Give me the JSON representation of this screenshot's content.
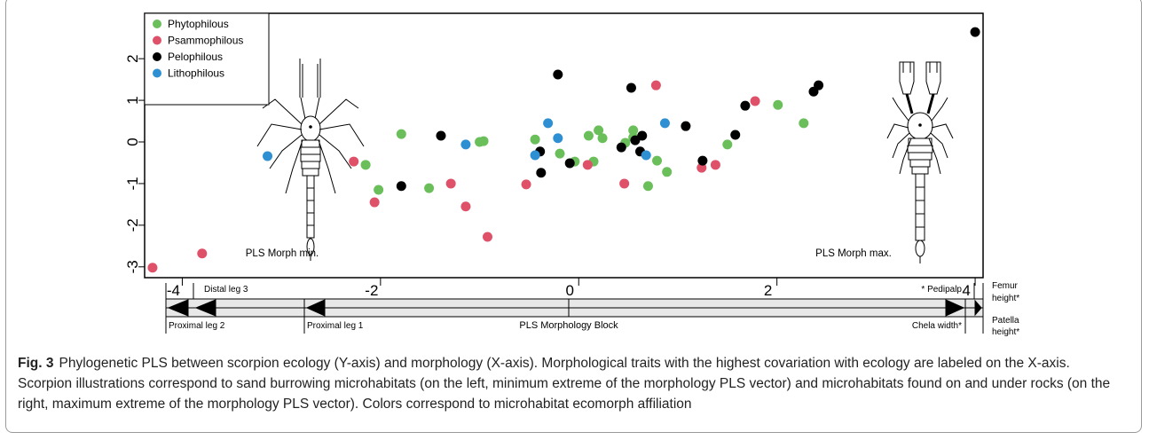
{
  "chart_data": {
    "type": "scatter",
    "xlim": [
      -4.38,
      4.08
    ],
    "ylim": [
      -3.26,
      3.09
    ],
    "xticks": [
      -4,
      -2,
      0,
      2,
      4
    ],
    "yticks": [
      -3,
      -2,
      -1,
      0,
      1,
      2
    ],
    "legend": "upper left",
    "series": [
      {
        "name": "Phytophilous",
        "color": "#6abf5b",
        "x": [
          -2.15,
          -2.02,
          -1.79,
          -1.51,
          -1.0,
          -0.96,
          -0.44,
          -0.19,
          -0.04,
          0.1,
          0.15,
          0.2,
          0.24,
          0.47,
          0.55,
          0.55,
          0.7,
          0.79,
          0.89,
          1.5,
          2.01,
          2.27
        ],
        "values": [
          -0.55,
          -1.15,
          0.19,
          -1.11,
          0.0,
          0.02,
          0.06,
          -0.28,
          -0.47,
          0.15,
          -0.47,
          0.28,
          0.09,
          -0.02,
          0.28,
          0.11,
          -1.06,
          -0.45,
          -0.72,
          -0.06,
          0.89,
          0.45
        ]
      },
      {
        "name": "Psammophilous",
        "color": "#df5168",
        "x": [
          -4.3,
          -3.8,
          -2.27,
          -2.06,
          -1.29,
          -1.14,
          -0.92,
          -0.53,
          0.09,
          0.46,
          0.78,
          1.24,
          1.38,
          1.78
        ],
        "values": [
          -3.02,
          -2.68,
          -0.47,
          -1.45,
          -1.0,
          -1.55,
          -2.28,
          -1.02,
          -0.55,
          -1.0,
          1.36,
          -0.62,
          -0.55,
          0.98
        ]
      },
      {
        "name": "Pelophilous",
        "color": "#000000",
        "x": [
          -1.79,
          -1.39,
          -0.38,
          -0.39,
          -0.21,
          -0.09,
          0.43,
          0.53,
          0.57,
          0.62,
          0.64,
          1.08,
          1.25,
          1.58,
          1.68,
          2.37,
          2.42,
          4.0
        ],
        "values": [
          -1.06,
          0.15,
          -0.74,
          -0.23,
          1.62,
          -0.51,
          -0.13,
          1.3,
          0.04,
          -0.23,
          0.15,
          0.38,
          -0.45,
          0.17,
          0.87,
          1.21,
          1.36,
          2.64
        ]
      },
      {
        "name": "Lithophilous",
        "color": "#2f8fd3",
        "x": [
          -3.14,
          -1.14,
          -0.44,
          -0.31,
          -0.21,
          0.68,
          0.87
        ],
        "values": [
          -0.34,
          -0.06,
          -0.32,
          0.45,
          0.09,
          -0.32,
          0.45
        ]
      }
    ],
    "annotations": {
      "min_label": "PLS Morph min.",
      "max_label": "PLS Morph max.",
      "block_label": "PLS Morphology Block",
      "distal_leg_3": "Distal leg 3",
      "proximal_leg_2": "Proximal leg 2",
      "proximal_leg_1": "Proximal leg 1",
      "pedipalp": "* Pedipalp",
      "chela_width": "Chela width*",
      "femur_height": [
        "Femur",
        "height*"
      ],
      "patella_height": [
        "Patella",
        "height*"
      ]
    }
  },
  "caption": {
    "label": "Fig. 3",
    "text": "Phylogenetic PLS between scorpion ecology (Y-axis) and morphology (X-axis). Morphological traits with the highest covariation with ecology are labeled on the X-axis. Scorpion illustrations correspond to sand burrowing microhabitats (on the left, minimum extreme of the morphology PLS vector) and microhabitats found on and under rocks (on the right, maximum extreme of the morphology PLS vector). Colors correspond to microhabitat ecomorph affiliation"
  }
}
